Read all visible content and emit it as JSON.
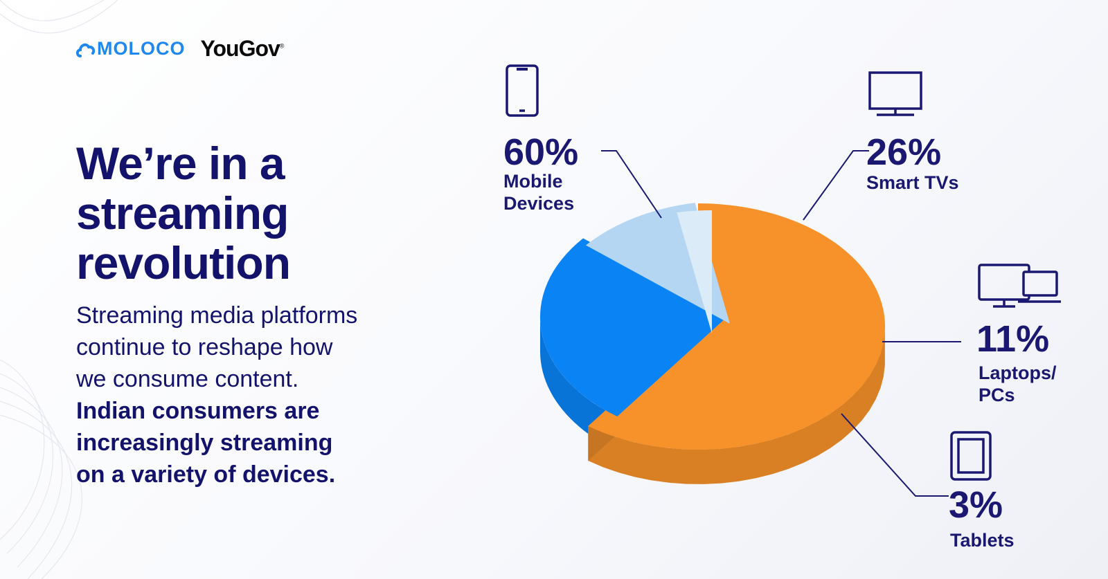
{
  "logos": {
    "moloco": "MOLOCO",
    "yougov": "YouGov",
    "yougov_mark": "®"
  },
  "headline": [
    "We’re in a",
    "streaming",
    "revolution"
  ],
  "body": {
    "regular": [
      "Streaming media platforms",
      "continue to reshape how",
      "we consume content."
    ],
    "bold": [
      "Indian consumers are",
      "increasingly streaming",
      "on a variety of devices."
    ]
  },
  "colors": {
    "navy": "#14136c",
    "orange": "#f7922a",
    "blue": "#0a84f4",
    "light_blue": "#b5d6f3",
    "pale_blue": "#dcebf8"
  },
  "chart_data": {
    "type": "pie",
    "slices": [
      {
        "label": "Mobile Devices",
        "label_lines": [
          "Mobile",
          "Devices"
        ],
        "value": 60,
        "value_label": "60%",
        "color": "#f7922a",
        "icon": "smartphone-icon"
      },
      {
        "label": "Smart TVs",
        "label_lines": [
          "Smart TVs"
        ],
        "value": 26,
        "value_label": "26%",
        "color": "#0a84f4",
        "icon": "tv-icon"
      },
      {
        "label": "Laptops/PCs",
        "label_lines": [
          "Laptops/",
          "PCs"
        ],
        "value": 11,
        "value_label": "11%",
        "color": "#b5d6f3",
        "icon": "desktop-laptop-icon"
      },
      {
        "label": "Tablets",
        "label_lines": [
          "Tablets"
        ],
        "value": 3,
        "value_label": "3%",
        "color": "#dcebf8",
        "icon": "tablet-icon"
      }
    ]
  }
}
